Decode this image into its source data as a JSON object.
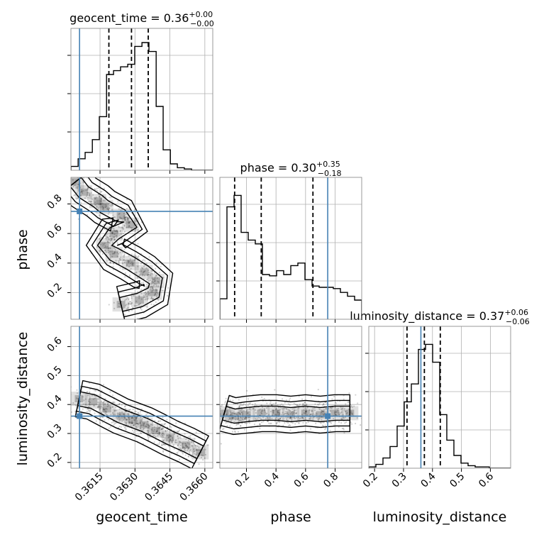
{
  "figure": {
    "type": "corner-plot",
    "truth_color": "#4682b4",
    "hist_color": "#000000",
    "grid_color": "#b0b0b0"
  },
  "titles": {
    "geocent_time": {
      "name": "geocent_time",
      "median": "0.36",
      "plus": "+0.00",
      "minus": "−0.00"
    },
    "phase": {
      "name": "phase",
      "median": "0.30",
      "plus": "+0.35",
      "minus": "−0.18"
    },
    "luminosity_distance": {
      "name": "luminosity_distance",
      "median": "0.37",
      "plus": "+0.06",
      "minus": "−0.06"
    }
  },
  "axis_labels": {
    "geocent_time": "geocent_time",
    "phase": "phase",
    "luminosity_distance": "luminosity_distance"
  },
  "chart_data": [
    {
      "type": "histogram",
      "param": "geocent_time",
      "xlim": [
        0.36025,
        0.36634
      ],
      "x_ticks": [
        "0.3615",
        "0.3630",
        "0.3645",
        "0.3660"
      ],
      "bin_edges": [
        0.36025,
        0.36056,
        0.36086,
        0.36117,
        0.36147,
        0.36178,
        0.36208,
        0.36238,
        0.36269,
        0.36299,
        0.3633,
        0.3636,
        0.36391,
        0.36421,
        0.36452,
        0.36482,
        0.36512,
        0.36543,
        0.36573,
        0.36604,
        0.36634
      ],
      "counts": [
        0.03,
        0.09,
        0.14,
        0.24,
        0.42,
        0.75,
        0.78,
        0.81,
        0.83,
        0.97,
        1.0,
        0.93,
        0.5,
        0.16,
        0.05,
        0.02,
        0.01,
        0.0,
        0.0,
        0.0
      ],
      "quantiles": [
        0.36188,
        0.36285,
        0.36357
      ],
      "truth": 0.36062
    },
    {
      "type": "histogram",
      "param": "phase",
      "xlim": [
        0.02,
        0.98
      ],
      "x_ticks": [
        "0.2",
        "0.4",
        "0.6",
        "0.8"
      ],
      "bin_edges": [
        0.02,
        0.068,
        0.116,
        0.164,
        0.212,
        0.26,
        0.308,
        0.356,
        0.404,
        0.452,
        0.5,
        0.548,
        0.596,
        0.644,
        0.692,
        0.74,
        0.788,
        0.836,
        0.884,
        0.932,
        0.98
      ],
      "counts": [
        0.16,
        0.88,
        0.97,
        0.68,
        0.62,
        0.59,
        0.35,
        0.34,
        0.38,
        0.35,
        0.42,
        0.44,
        0.31,
        0.26,
        0.25,
        0.25,
        0.24,
        0.21,
        0.18,
        0.15
      ],
      "quantiles": [
        0.12,
        0.3,
        0.65
      ],
      "truth": 0.75
    },
    {
      "type": "histogram",
      "param": "luminosity_distance",
      "xlim": [
        0.18,
        0.67
      ],
      "x_ticks": [
        "0.2",
        "0.3",
        "0.4",
        "0.5",
        "0.6"
      ],
      "bin_edges": [
        0.18,
        0.2045,
        0.229,
        0.2535,
        0.278,
        0.3025,
        0.327,
        0.3515,
        0.376,
        0.4005,
        0.425,
        0.4495,
        0.474,
        0.4985,
        0.523,
        0.5475,
        0.572,
        0.5965,
        0.621,
        0.6455,
        0.67
      ],
      "counts": [
        0.01,
        0.03,
        0.08,
        0.17,
        0.33,
        0.52,
        0.66,
        0.93,
        0.97,
        0.83,
        0.42,
        0.22,
        0.1,
        0.04,
        0.02,
        0.01,
        0.01,
        0.0,
        0.0,
        0.0
      ],
      "quantiles": [
        0.312,
        0.372,
        0.427
      ],
      "truth": 0.36
    },
    {
      "type": "scatter-density",
      "x_param": "geocent_time",
      "y_param": "phase",
      "xlim": [
        0.36025,
        0.36634
      ],
      "ylim": [
        0.02,
        0.98
      ],
      "x_ticks": [
        "0.3615",
        "0.3630",
        "0.3645",
        "0.3660"
      ],
      "y_ticks": [
        "0.2",
        "0.4",
        "0.6",
        "0.8"
      ],
      "truth": [
        0.36062,
        0.75
      ],
      "ridge": [
        [
          0.36045,
          0.95
        ],
        [
          0.3608,
          0.88
        ],
        [
          0.3614,
          0.82
        ],
        [
          0.3617,
          0.78
        ],
        [
          0.3624,
          0.72
        ],
        [
          0.3628,
          0.66
        ],
        [
          0.3621,
          0.6
        ],
        [
          0.3617,
          0.52
        ],
        [
          0.3621,
          0.46
        ],
        [
          0.3628,
          0.4
        ],
        [
          0.3634,
          0.34
        ],
        [
          0.3639,
          0.28
        ],
        [
          0.3638,
          0.2
        ],
        [
          0.3632,
          0.15
        ],
        [
          0.3624,
          0.12
        ]
      ]
    },
    {
      "type": "scatter-density",
      "x_param": "geocent_time",
      "y_param": "luminosity_distance",
      "xlim": [
        0.36025,
        0.36634
      ],
      "ylim": [
        0.18,
        0.67
      ],
      "x_ticks": [
        "0.3615",
        "0.3630",
        "0.3645",
        "0.3660"
      ],
      "y_ticks": [
        "0.2",
        "0.3",
        "0.4",
        "0.5",
        "0.6"
      ],
      "truth": [
        0.36062,
        0.36
      ],
      "ridge": [
        [
          0.3606,
          0.42
        ],
        [
          0.3612,
          0.41
        ],
        [
          0.3618,
          0.385
        ],
        [
          0.3624,
          0.36
        ],
        [
          0.3629,
          0.345
        ],
        [
          0.3634,
          0.33
        ],
        [
          0.3639,
          0.31
        ],
        [
          0.3645,
          0.285
        ],
        [
          0.3652,
          0.26
        ],
        [
          0.3658,
          0.235
        ]
      ]
    },
    {
      "type": "scatter-density",
      "x_param": "phase",
      "y_param": "luminosity_distance",
      "xlim": [
        0.02,
        0.98
      ],
      "ylim": [
        0.18,
        0.67
      ],
      "x_ticks": [
        "0.2",
        "0.4",
        "0.6",
        "0.8"
      ],
      "y_ticks": [
        "0.2",
        "0.3",
        "0.4",
        "0.5",
        "0.6"
      ],
      "truth": [
        0.75,
        0.36
      ],
      "ridge": [
        [
          0.05,
          0.37
        ],
        [
          0.12,
          0.36
        ],
        [
          0.2,
          0.365
        ],
        [
          0.3,
          0.37
        ],
        [
          0.4,
          0.37
        ],
        [
          0.5,
          0.365
        ],
        [
          0.6,
          0.37
        ],
        [
          0.7,
          0.365
        ],
        [
          0.8,
          0.37
        ],
        [
          0.9,
          0.37
        ]
      ]
    }
  ]
}
